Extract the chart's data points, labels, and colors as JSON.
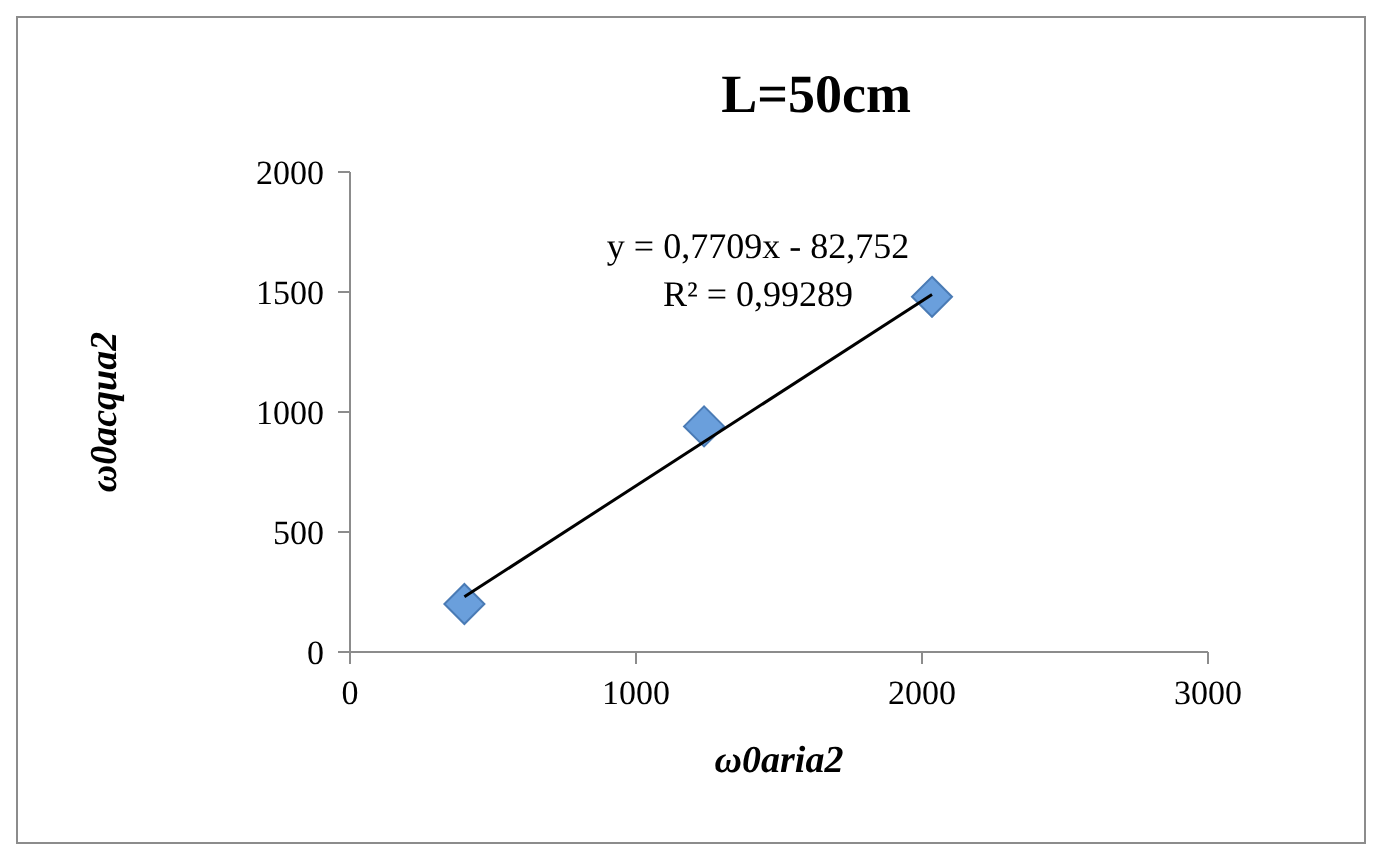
{
  "chart_data": {
    "type": "scatter",
    "title": "L=50cm",
    "xlabel": "ω0aria2",
    "ylabel": "ω0acqua2",
    "x": [
      400,
      1238,
      2035
    ],
    "series": [
      {
        "type": "scatter",
        "color": "#6a9fdc",
        "marker": "diamond",
        "values": [
          200,
          940,
          1480
        ]
      },
      {
        "type": "line",
        "color": "#000000",
        "marker": "none",
        "x": [
          400,
          2035
        ],
        "values": [
          230,
          1490
        ]
      }
    ],
    "annotations": [
      "y = 0,7709x - 82,752",
      "R² = 0,99289"
    ],
    "xlim": [
      0,
      3000
    ],
    "xticks": [
      0,
      1000,
      2000,
      3000
    ],
    "ylim": [
      0,
      2000
    ],
    "yticks": [
      0,
      500,
      1000,
      1500,
      2000
    ],
    "grid": false
  }
}
